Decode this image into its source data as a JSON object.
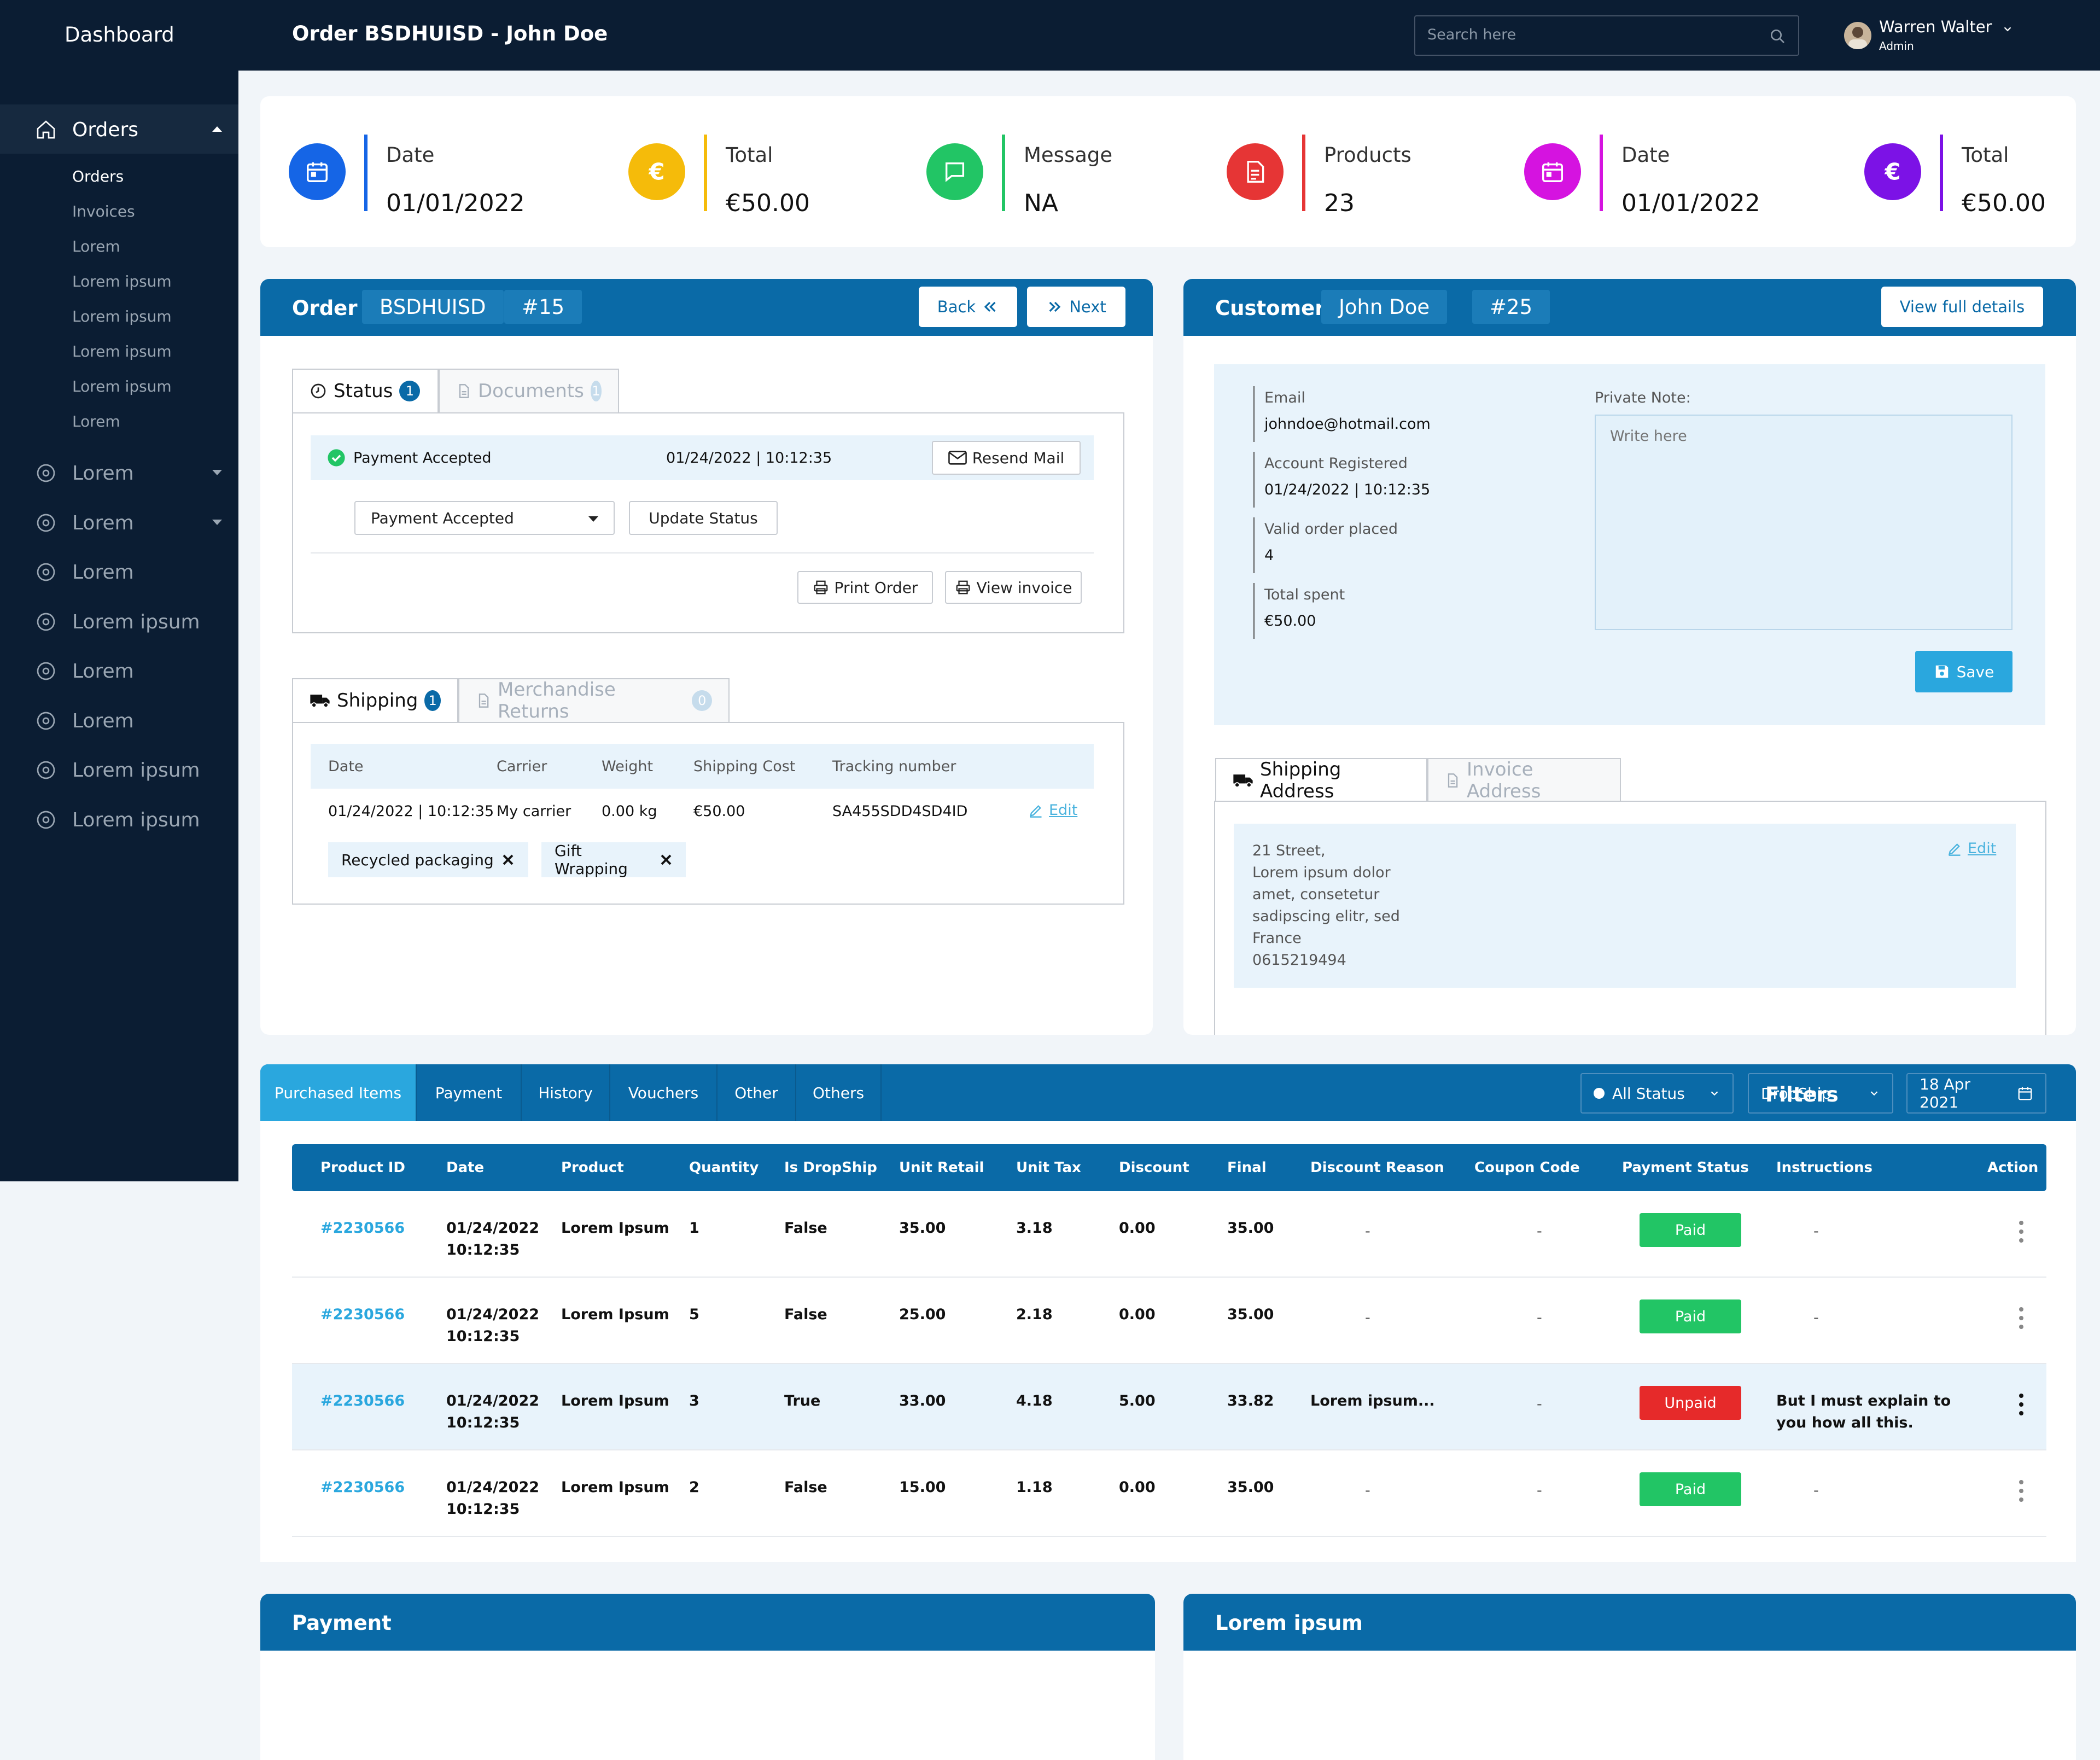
{
  "topbar": {
    "brand": "Dashboard",
    "title": "Order BSDHUISD - John Doe",
    "search_placeholder": "Search here",
    "user": {
      "name": "Warren Walter",
      "role": "Admin"
    }
  },
  "sidebar": {
    "orders_label": "Orders",
    "sub_items": [
      "Orders",
      "Invoices",
      "Lorem",
      "Lorem ipsum",
      "Lorem ipsum",
      "Lorem ipsum",
      "Lorem ipsum",
      "Lorem"
    ],
    "items": [
      {
        "label": "Lorem",
        "icon": "soccer-ball-icon",
        "has_caret": true
      },
      {
        "label": "Lorem",
        "icon": "badge-gear-icon",
        "has_caret": true
      },
      {
        "label": "Lorem",
        "icon": "target-icon",
        "has_caret": false
      },
      {
        "label": "Lorem ipsum",
        "icon": "document-grid-icon",
        "has_caret": false
      },
      {
        "label": "Lorem",
        "icon": "command-icon",
        "has_caret": false
      },
      {
        "label": "Lorem",
        "icon": "check-circle-icon",
        "has_caret": false
      },
      {
        "label": "Lorem ipsum",
        "icon": "bell-icon",
        "has_caret": false
      },
      {
        "label": "Lorem ipsum",
        "icon": "nodes-icon",
        "has_caret": false
      }
    ]
  },
  "stats": [
    {
      "title": "Date",
      "value": "01/01/2022",
      "color": "#1565e6",
      "icon": "calendar-icon"
    },
    {
      "title": "Total",
      "value": "€50.00",
      "color": "#f5bb0a",
      "icon": "euro-icon"
    },
    {
      "title": "Message",
      "value": "NA",
      "color": "#22c565",
      "icon": "chat-icon"
    },
    {
      "title": "Products",
      "value": "23",
      "color": "#e63535",
      "icon": "document-icon"
    },
    {
      "title": "Date",
      "value": "01/01/2022",
      "color": "#d513e0",
      "icon": "calendar-icon"
    },
    {
      "title": "Total",
      "value": "€50.00",
      "color": "#7c12e6",
      "icon": "euro-icon"
    }
  ],
  "order_panel": {
    "title": "Order",
    "code": "BSDHUISD",
    "number": "#15",
    "back_label": "Back",
    "next_label": "Next",
    "status_tab": {
      "label": "Status",
      "count": "1"
    },
    "documents_tab": {
      "label": "Documents",
      "count": "1"
    },
    "status_row": {
      "text": "Payment Accepted",
      "datetime": "01/24/2022 | 10:12:35",
      "resend_label": "Resend Mail"
    },
    "status_select": "Payment Accepted",
    "update_label": "Update Status",
    "print_label": "Print Order",
    "invoice_label": "View invoice",
    "shipping_tab": {
      "label": "Shipping",
      "count": "1"
    },
    "returns_tab": {
      "label": "Merchandise Returns",
      "count": "0"
    },
    "shipping_headers": [
      "Date",
      "Carrier",
      "Weight",
      "Shipping Cost",
      "Tracking number"
    ],
    "shipping_row": [
      "01/24/2022 | 10:12:35",
      "My carrier",
      "0.00 kg",
      "€50.00",
      "SA455SDD4SD4ID"
    ],
    "edit_label": "Edit",
    "tags": [
      "Recycled packaging",
      "Gift Wrapping"
    ]
  },
  "customer_panel": {
    "title": "Customer",
    "name": "John Doe",
    "number": "#25",
    "view_label": "View full details",
    "fields": [
      {
        "label": "Email",
        "value": "johndoe@hotmail.com"
      },
      {
        "label": "Account Registered",
        "value": "01/24/2022 | 10:12:35"
      },
      {
        "label": "Valid order placed",
        "value": "4"
      },
      {
        "label": "Total spent",
        "value": "€50.00"
      }
    ],
    "note_label": "Private Note:",
    "note_placeholder": "Write here",
    "save_label": "Save",
    "shipping_address_tab": "Shipping Address",
    "invoice_address_tab": "Invoice Address",
    "address_lines": [
      "21 Street,",
      "Lorem ipsum dolor",
      "amet, consetetur",
      "sadipscing elitr, sed",
      "France",
      "0615219494"
    ],
    "edit_label": "Edit"
  },
  "items_tabs": [
    "Purchased Items",
    "Payment",
    "History",
    "Vouchers",
    "Other",
    "Others"
  ],
  "filters": {
    "label": "Filters",
    "status": "All Status",
    "type": "DropShip",
    "date": "18 Apr 2021"
  },
  "table": {
    "headers": [
      "Product ID",
      "Date",
      "Product",
      "Quantity",
      "Is DropShip",
      "Unit Retail",
      "Unit Tax",
      "Discount",
      "Final",
      "Discount Reason",
      "Coupon Code",
      "Payment Status",
      "Instructions",
      "Action"
    ],
    "rows": [
      {
        "id": "#2230566",
        "date1": "01/24/2022",
        "date2": "10:12:35",
        "product": "Lorem Ipsum",
        "qty": "1",
        "dropship": "False",
        "retail": "35.00",
        "tax": "3.18",
        "discount": "0.00",
        "final": "35.00",
        "reason": "-",
        "coupon": "-",
        "status": "Paid",
        "instr1": "-",
        "instr2": ""
      },
      {
        "id": "#2230566",
        "date1": "01/24/2022",
        "date2": "10:12:35",
        "product": "Lorem Ipsum",
        "qty": "5",
        "dropship": "False",
        "retail": "25.00",
        "tax": "2.18",
        "discount": "0.00",
        "final": "35.00",
        "reason": "-",
        "coupon": "-",
        "status": "Paid",
        "instr1": "-",
        "instr2": ""
      },
      {
        "id": "#2230566",
        "date1": "01/24/2022",
        "date2": "10:12:35",
        "product": "Lorem Ipsum",
        "qty": "3",
        "dropship": "True",
        "retail": "33.00",
        "tax": "4.18",
        "discount": "5.00",
        "final": "33.82",
        "reason": "Lorem ipsum...",
        "coupon": "-",
        "status": "Unpaid",
        "instr1": "But I must explain to",
        "instr2": "you how all this."
      },
      {
        "id": "#2230566",
        "date1": "01/24/2022",
        "date2": "10:12:35",
        "product": "Lorem Ipsum",
        "qty": "2",
        "dropship": "False",
        "retail": "15.00",
        "tax": "1.18",
        "discount": "0.00",
        "final": "35.00",
        "reason": "-",
        "coupon": "-",
        "status": "Paid",
        "instr1": "-",
        "instr2": ""
      }
    ]
  },
  "status_colors": {
    "Paid": "#22c565",
    "Unpaid": "#e62a2a"
  },
  "bottom_panels": [
    "Payment",
    "Lorem ipsum"
  ]
}
